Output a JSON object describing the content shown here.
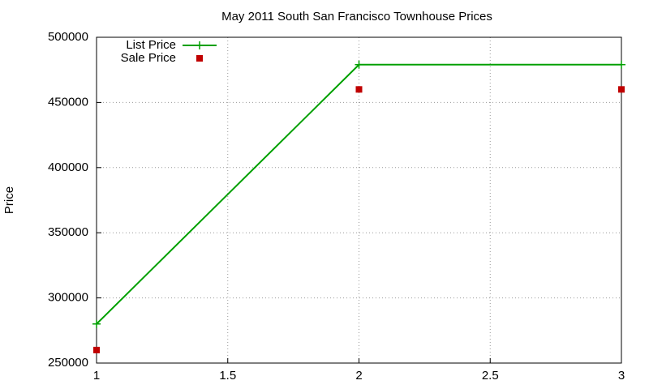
{
  "chart_data": {
    "type": "linepoints",
    "title": "May 2011 South San Francisco Townhouse Prices",
    "ylabel": "Price",
    "x": [
      1,
      2,
      3
    ],
    "series": [
      {
        "name": "List Price",
        "color": "#00a000",
        "style": "line",
        "values": [
          280000,
          479000,
          479000
        ]
      },
      {
        "name": "Sale Price",
        "color": "#c00000",
        "style": "points",
        "values": [
          260000,
          460000,
          460000
        ]
      }
    ],
    "xlim": [
      1,
      3
    ],
    "xticks": [
      1,
      1.5,
      2,
      2.5,
      3
    ],
    "ylim": [
      250000,
      500000
    ],
    "yticks": [
      250000,
      300000,
      350000,
      400000,
      450000,
      500000
    ],
    "grid": true,
    "legend": "top-left"
  }
}
